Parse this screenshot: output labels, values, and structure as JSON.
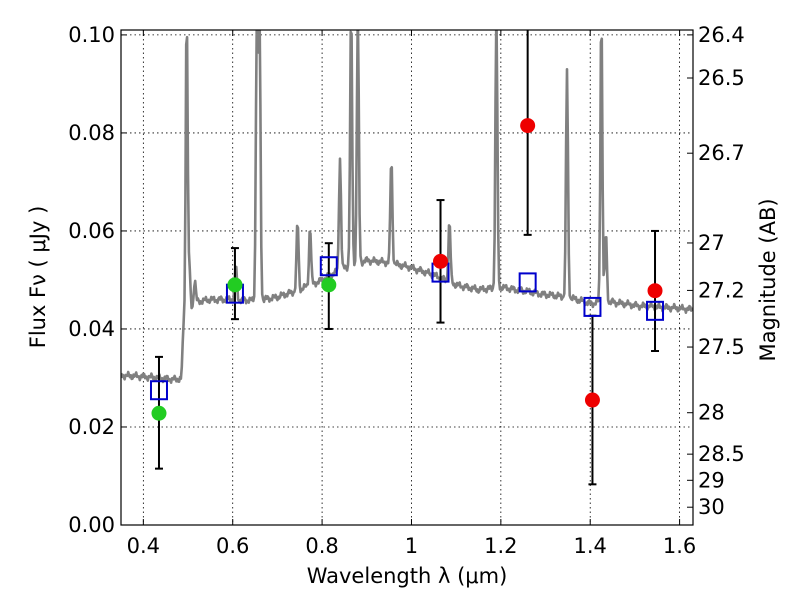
{
  "chart_data": {
    "type": "scatter",
    "xlabel": "Wavelength  λ (μm)",
    "ylabel": "Flux  Fν  ( μJy )",
    "y2label": "Magnitude (AB)",
    "xlim": [
      0.35,
      1.63
    ],
    "ylim": [
      0.0,
      0.101
    ],
    "grid": true,
    "x_ticks": [
      {
        "value": 0.4,
        "label": "0.4"
      },
      {
        "value": 0.6,
        "label": "0.6"
      },
      {
        "value": 0.8,
        "label": "0.8"
      },
      {
        "value": 1.0,
        "label": "1"
      },
      {
        "value": 1.2,
        "label": "1.2"
      },
      {
        "value": 1.4,
        "label": "1.4"
      },
      {
        "value": 1.6,
        "label": "1.6"
      }
    ],
    "y_ticks": [
      {
        "value": 0.0,
        "label": "0.00"
      },
      {
        "value": 0.02,
        "label": "0.02"
      },
      {
        "value": 0.04,
        "label": "0.04"
      },
      {
        "value": 0.06,
        "label": "0.06"
      },
      {
        "value": 0.08,
        "label": "0.08"
      },
      {
        "value": 0.1,
        "label": "0.10"
      }
    ],
    "y2_ticks": [
      {
        "value": 26.4,
        "label": "26.4"
      },
      {
        "value": 26.5,
        "label": "26.5"
      },
      {
        "value": 26.7,
        "label": "26.7"
      },
      {
        "value": 27.0,
        "label": "27"
      },
      {
        "value": 27.2,
        "label": "27.2"
      },
      {
        "value": 27.5,
        "label": "27.5"
      },
      {
        "value": 28.0,
        "label": "28"
      },
      {
        "value": 28.5,
        "label": "28.5"
      },
      {
        "value": 29.0,
        "label": "29"
      },
      {
        "value": 30.0,
        "label": "30"
      }
    ],
    "colors": {
      "spectrum": "#808080",
      "model": "#0000cc",
      "optical": "#22cc22",
      "nir": "#ee0000",
      "errorbar": "#000000"
    },
    "spectrum": {
      "continuum": [
        [
          0.35,
          0.0305
        ],
        [
          0.4,
          0.0303
        ],
        [
          0.47,
          0.0297
        ],
        [
          0.485,
          0.0298
        ],
        [
          0.49,
          0.041
        ],
        [
          0.5,
          0.043
        ],
        [
          0.52,
          0.0455
        ],
        [
          0.55,
          0.046
        ],
        [
          0.6,
          0.046
        ],
        [
          0.65,
          0.0458
        ],
        [
          0.7,
          0.0465
        ],
        [
          0.75,
          0.048
        ],
        [
          0.8,
          0.05
        ],
        [
          0.85,
          0.0525
        ],
        [
          0.9,
          0.054
        ],
        [
          0.95,
          0.0535
        ],
        [
          1.0,
          0.0525
        ],
        [
          1.05,
          0.051
        ],
        [
          1.1,
          0.049
        ],
        [
          1.15,
          0.048
        ],
        [
          1.2,
          0.0485
        ],
        [
          1.25,
          0.0478
        ],
        [
          1.3,
          0.047
        ],
        [
          1.35,
          0.0465
        ],
        [
          1.4,
          0.0452
        ],
        [
          1.45,
          0.0455
        ],
        [
          1.5,
          0.0448
        ],
        [
          1.55,
          0.0445
        ],
        [
          1.6,
          0.0442
        ],
        [
          1.63,
          0.044
        ]
      ],
      "lines": [
        {
          "x": 0.497,
          "peak": 0.105
        },
        {
          "x": 0.503,
          "peak": 0.052
        },
        {
          "x": 0.515,
          "peak": 0.05
        },
        {
          "x": 0.607,
          "peak": 0.053
        },
        {
          "x": 0.654,
          "peak": 0.105
        },
        {
          "x": 0.66,
          "peak": 0.105
        },
        {
          "x": 0.745,
          "peak": 0.062
        },
        {
          "x": 0.773,
          "peak": 0.061
        },
        {
          "x": 0.84,
          "peak": 0.075
        },
        {
          "x": 0.865,
          "peak": 0.105
        },
        {
          "x": 0.88,
          "peak": 0.105
        },
        {
          "x": 0.955,
          "peak": 0.075
        },
        {
          "x": 1.085,
          "peak": 0.062
        },
        {
          "x": 1.19,
          "peak": 0.105
        },
        {
          "x": 1.348,
          "peak": 0.093
        },
        {
          "x": 1.425,
          "peak": 0.105
        },
        {
          "x": 1.435,
          "peak": 0.06
        }
      ]
    },
    "model_points": [
      {
        "x": 0.435,
        "y": 0.0275
      },
      {
        "x": 0.605,
        "y": 0.0472
      },
      {
        "x": 0.815,
        "y": 0.0528
      },
      {
        "x": 1.065,
        "y": 0.0515
      },
      {
        "x": 1.26,
        "y": 0.0495
      },
      {
        "x": 1.405,
        "y": 0.0445
      },
      {
        "x": 1.545,
        "y": 0.0437
      }
    ],
    "observed_points": [
      {
        "x": 0.435,
        "y": 0.0228,
        "err_low": 0.0115,
        "err_high": 0.0343,
        "band": "optical"
      },
      {
        "x": 0.605,
        "y": 0.049,
        "err_low": 0.042,
        "err_high": 0.0565,
        "band": "optical"
      },
      {
        "x": 0.815,
        "y": 0.049,
        "err_low": 0.04,
        "err_high": 0.0575,
        "band": "optical"
      },
      {
        "x": 1.065,
        "y": 0.0538,
        "err_low": 0.0413,
        "err_high": 0.0663,
        "band": "nir"
      },
      {
        "x": 1.26,
        "y": 0.0815,
        "err_low": 0.0592,
        "err_high": 0.105,
        "band": "nir"
      },
      {
        "x": 1.405,
        "y": 0.0255,
        "err_low": 0.0083,
        "err_high": 0.0427,
        "band": "nir"
      },
      {
        "x": 1.545,
        "y": 0.0478,
        "err_low": 0.0355,
        "err_high": 0.06,
        "band": "nir"
      }
    ]
  }
}
